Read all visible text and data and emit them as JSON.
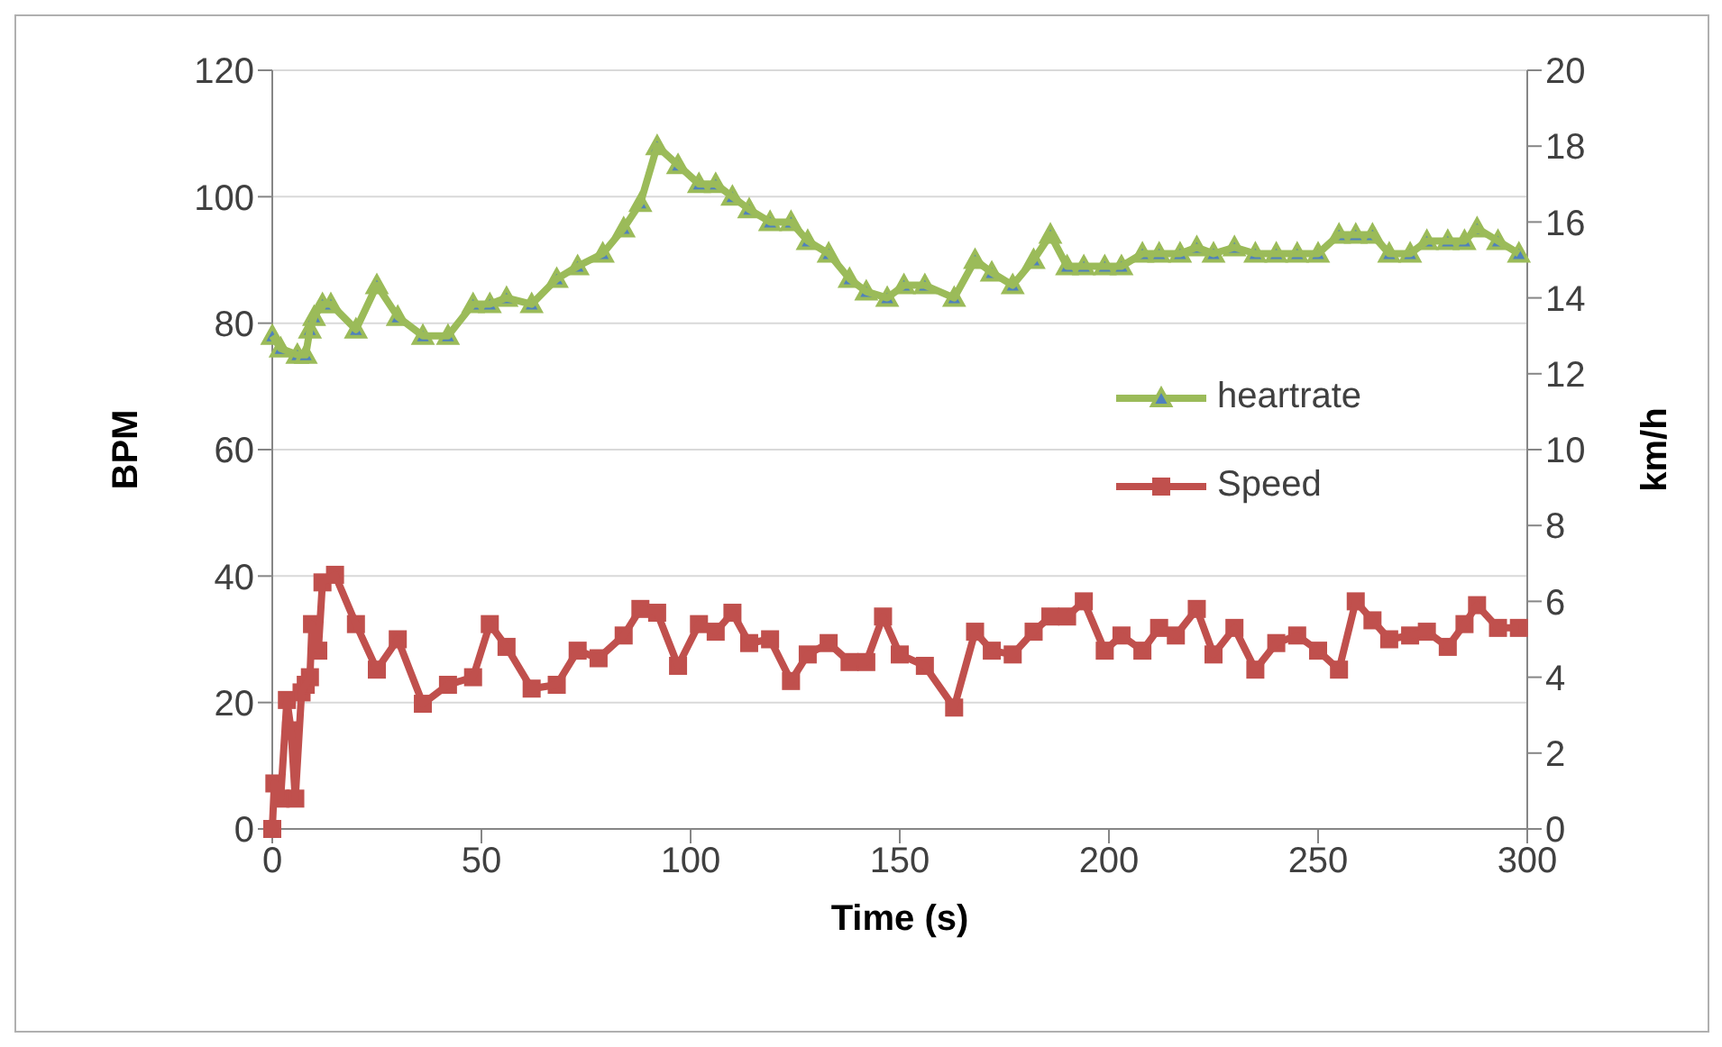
{
  "chart_data": {
    "type": "line",
    "xlabel": "Time (s)",
    "ylabel": "BPM",
    "y2label": "km/h",
    "xlim": [
      0,
      300
    ],
    "xticks": [
      0,
      50,
      100,
      150,
      200,
      250,
      300
    ],
    "ylim": [
      0,
      120
    ],
    "yticks": [
      0,
      20,
      40,
      60,
      80,
      100,
      120
    ],
    "y2lim": [
      0,
      20
    ],
    "y2ticks": [
      0,
      2,
      4,
      6,
      8,
      10,
      12,
      14,
      16,
      18,
      20
    ],
    "grid": "y",
    "legend": "right",
    "line_style": "solid",
    "series": [
      {
        "name": "heartrate",
        "color": "#9bbb59",
        "marker": "triangle",
        "x": [
          0,
          2,
          6,
          8,
          9,
          10,
          12,
          14,
          20,
          25,
          30,
          36,
          42,
          48,
          52,
          56,
          62,
          68,
          73,
          79,
          84,
          88,
          92,
          97,
          102,
          106,
          110,
          114,
          119,
          124,
          128,
          133,
          138,
          142,
          147,
          151,
          156,
          163,
          168,
          172,
          177,
          182,
          186,
          190,
          194,
          199,
          203,
          208,
          212,
          217,
          221,
          225,
          230,
          235,
          240,
          245,
          250,
          255,
          259,
          263,
          267,
          272,
          276,
          281,
          285,
          288,
          293,
          298
        ],
        "values": [
          78,
          76,
          75,
          75,
          79,
          81,
          83,
          83,
          79,
          86,
          81,
          78,
          78,
          83,
          83,
          84,
          83,
          87,
          89,
          91,
          95,
          99,
          108,
          105,
          102,
          102,
          100,
          98,
          96,
          96,
          93,
          91,
          87,
          85,
          84,
          86,
          86,
          84,
          90,
          88,
          86,
          90,
          94,
          89,
          89,
          89,
          89,
          91,
          91,
          91,
          92,
          91,
          92,
          91,
          91,
          91,
          91,
          94,
          94,
          94,
          91,
          91,
          93,
          93,
          93,
          95,
          93,
          91
        ]
      },
      {
        "name": "Speed",
        "color": "#c0504d",
        "marker": "square",
        "axis": "y2",
        "x": [
          0,
          0.5,
          2,
          3.5,
          4.5,
          5.5,
          7,
          8,
          9,
          9.5,
          11,
          12,
          15,
          20,
          25,
          30,
          36,
          42,
          48,
          52,
          56,
          62,
          68,
          73,
          78,
          84,
          88,
          92,
          97,
          102,
          106,
          110,
          114,
          119,
          124,
          128,
          133,
          138,
          142,
          146,
          150,
          156,
          163,
          168,
          172,
          177,
          182,
          186,
          190,
          194,
          199,
          203,
          208,
          212,
          216,
          221,
          225,
          230,
          235,
          240,
          245,
          250,
          255,
          259,
          263,
          267,
          272,
          276,
          281,
          285,
          288,
          293,
          298
        ],
        "values": [
          0,
          1.2,
          0.8,
          3.4,
          2.6,
          0.8,
          3.6,
          3.8,
          4.0,
          5.4,
          4.7,
          6.5,
          6.7,
          5.4,
          4.2,
          5.0,
          3.3,
          3.8,
          4.0,
          5.4,
          4.8,
          3.7,
          3.8,
          4.7,
          4.5,
          5.1,
          5.8,
          5.7,
          4.3,
          5.4,
          5.2,
          5.7,
          4.9,
          5.0,
          3.9,
          4.6,
          4.9,
          4.4,
          4.4,
          5.6,
          4.6,
          4.3,
          3.2,
          5.2,
          4.7,
          4.6,
          5.2,
          5.6,
          5.6,
          6.0,
          4.7,
          5.1,
          4.7,
          5.3,
          5.1,
          5.8,
          4.6,
          5.3,
          4.2,
          4.9,
          5.1,
          4.7,
          4.2,
          6.0,
          5.5,
          5.0,
          5.1,
          5.2,
          4.8,
          5.4,
          5.9,
          5.3,
          5.3
        ]
      }
    ]
  }
}
